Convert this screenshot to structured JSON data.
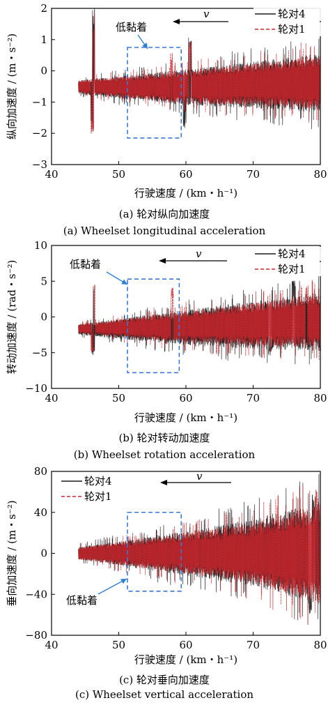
{
  "colors": {
    "wheelset4": "#1a1a1a",
    "wheelset1": "#c8262c",
    "box": "#3a78d8",
    "arrow": "#2f7fd6"
  },
  "chart_data": [
    {
      "id": "a",
      "type": "line",
      "caption_cn": "(a) 轮对纵向加速度",
      "caption_en": "(a) Wheelset longitudinal acceleration",
      "xlabel": "行驶速度 / (km・h⁻¹)",
      "ylabel": "纵向加速度 / (m・s⁻²)",
      "xlim": [
        40,
        80
      ],
      "ylim": [
        -3,
        2
      ],
      "xticks": [
        40,
        50,
        60,
        70,
        80
      ],
      "yticks": [
        -3,
        -2,
        -1,
        0,
        1,
        2
      ],
      "legend_position": "top-right",
      "velocity_label": "v",
      "annotation": "低黏着",
      "low_adhesion_region": {
        "x": [
          51.3,
          59.3
        ],
        "y": [
          -2.15,
          0.75
        ]
      },
      "series": [
        {
          "name": "轮对4",
          "color": "#1a1a1a",
          "dash": "solid",
          "x_range": [
            44,
            80
          ],
          "band": [
            [
              44,
              -0.75,
              -0.3
            ],
            [
              60,
              -1.1,
              0.05
            ],
            [
              70,
              -1.2,
              0.3
            ],
            [
              80,
              -1.35,
              0.55
            ]
          ],
          "peaks": [
            [
              46.2,
              2.0
            ],
            [
              46.0,
              -2.0
            ],
            [
              60.6,
              1.1
            ],
            [
              59.8,
              -1.85
            ]
          ]
        },
        {
          "name": "轮对1",
          "color": "#c8262c",
          "dash": "dashed",
          "x_range": [
            44,
            80
          ],
          "band": [
            [
              44,
              -0.72,
              -0.3
            ],
            [
              60,
              -1.05,
              0.0
            ],
            [
              70,
              -1.1,
              0.25
            ],
            [
              80,
              -1.25,
              0.5
            ]
          ],
          "peaks": [
            [
              46.3,
              1.9
            ],
            [
              46.1,
              -2.05
            ],
            [
              57.9,
              0.6
            ],
            [
              60.6,
              1.0
            ]
          ]
        }
      ]
    },
    {
      "id": "b",
      "type": "line",
      "caption_cn": "(b) 轮对转动加速度",
      "caption_en": "(b) Wheelset rotation acceleration",
      "xlabel": "行驶速度 / (km・h⁻¹)",
      "ylabel": "转动加速度 / (rad・s⁻²)",
      "xlim": [
        40,
        80
      ],
      "ylim": [
        -10,
        10
      ],
      "xticks": [
        40,
        50,
        60,
        70,
        80
      ],
      "yticks": [
        -10,
        -5,
        0,
        5,
        10
      ],
      "legend_position": "top-right",
      "velocity_label": "v",
      "annotation": "低黏着",
      "low_adhesion_region": {
        "x": [
          51.3,
          59.0
        ],
        "y": [
          -7.8,
          5.3
        ]
      },
      "series": [
        {
          "name": "轮对4",
          "color": "#1a1a1a",
          "dash": "solid",
          "x_range": [
            44,
            80
          ],
          "band": [
            [
              44,
              -2.5,
              -1.0
            ],
            [
              60,
              -4.0,
              1.0
            ],
            [
              70,
              -4.5,
              2.2
            ],
            [
              80,
              -4.8,
              3.5
            ]
          ],
          "peaks": [
            [
              46.2,
              5.0
            ],
            [
              46.2,
              -5.3
            ],
            [
              72.5,
              -5.4
            ],
            [
              76,
              5.2
            ]
          ]
        },
        {
          "name": "轮对1",
          "color": "#c8262c",
          "dash": "dashed",
          "x_range": [
            44,
            80
          ],
          "band": [
            [
              44,
              -2.3,
              -1.0
            ],
            [
              60,
              -3.6,
              0.8
            ],
            [
              70,
              -4.0,
              2.0
            ],
            [
              80,
              -4.3,
              3.2
            ]
          ],
          "peaks": [
            [
              46.3,
              4.7
            ],
            [
              46.1,
              -5.0
            ],
            [
              58.0,
              4.4
            ],
            [
              78,
              4.6
            ]
          ]
        }
      ]
    },
    {
      "id": "c",
      "type": "line",
      "caption_cn": "(c) 轮对垂向加速度",
      "caption_en": "(c) Wheelset vertical acceleration",
      "xlabel": "行驶速度 / (km・h⁻¹)",
      "ylabel": "垂向加速度 / (m・s⁻²)",
      "xlim": [
        40,
        80
      ],
      "ylim": [
        -80,
        80
      ],
      "xticks": [
        40,
        50,
        60,
        70,
        80
      ],
      "yticks": [
        -80,
        -40,
        0,
        40,
        80
      ],
      "legend_position": "top-left",
      "velocity_label": "v",
      "annotation": "低黏着",
      "low_adhesion_region": {
        "x": [
          51.3,
          59.3
        ],
        "y": [
          -37,
          40
        ]
      },
      "series": [
        {
          "name": "轮对4",
          "color": "#1a1a1a",
          "dash": "solid",
          "x_range": [
            44,
            80
          ],
          "band": [
            [
              44,
              -6,
              6
            ],
            [
              60,
              -22,
              22
            ],
            [
              70,
              -32,
              34
            ],
            [
              80,
              -50,
              50
            ]
          ],
          "peaks": [
            [
              79,
              58
            ],
            [
              78.5,
              -60
            ]
          ]
        },
        {
          "name": "轮对1",
          "color": "#c8262c",
          "dash": "dashed",
          "x_range": [
            44,
            80
          ],
          "band": [
            [
              44,
              -6,
              6
            ],
            [
              60,
              -20,
              20
            ],
            [
              70,
              -30,
              30
            ],
            [
              80,
              -48,
              48
            ]
          ],
          "peaks": [
            [
              79.5,
              65
            ],
            [
              79.8,
              -52
            ]
          ]
        }
      ]
    }
  ]
}
